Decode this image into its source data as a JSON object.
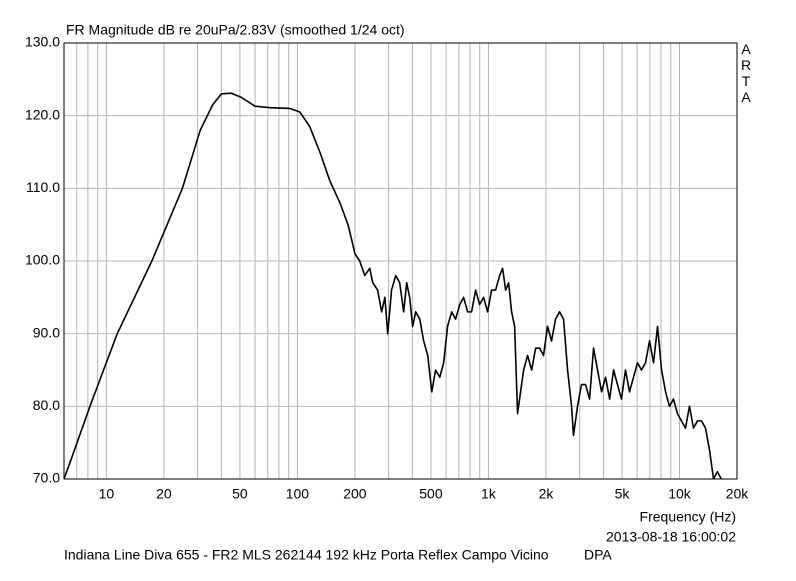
{
  "chart_data": {
    "type": "line",
    "title": "FR Magnitude dB re 20uPa/2.83V (smoothed 1/24 oct)",
    "side_label": "ARTA",
    "xlabel": "Frequency (Hz)",
    "timestamp": "2013-08-18  16:00:02",
    "footer": "Indiana Line Diva 655 - FR2 MLS 262144 192 kHz Porta Reflex Campo Vicino",
    "footer_right": "DPA",
    "xscale": "log",
    "xlim": [
      6,
      20000
    ],
    "ylim": [
      70,
      130
    ],
    "xticks": [
      10,
      20,
      50,
      100,
      200,
      500,
      {
        "value": 1000,
        "label": "1k"
      },
      {
        "value": 2000,
        "label": "2k"
      },
      {
        "value": 5000,
        "label": "5k"
      },
      {
        "value": 10000,
        "label": "10k"
      },
      {
        "value": 20000,
        "label": "20k"
      }
    ],
    "xgrid": [
      7,
      8,
      9,
      30,
      40,
      60,
      70,
      80,
      90,
      300,
      400,
      600,
      700,
      800,
      900,
      3000,
      4000,
      6000,
      7000,
      8000,
      9000
    ],
    "yticks": [
      {
        "value": 70,
        "label": "70.0"
      },
      {
        "value": 80,
        "label": "80.0"
      },
      {
        "value": 90,
        "label": "90.0"
      },
      {
        "value": 100,
        "label": "100.0"
      },
      {
        "value": 110,
        "label": "110.0"
      },
      {
        "value": 120,
        "label": "120.0"
      },
      {
        "value": 130,
        "label": "130.0"
      }
    ],
    "grid": true,
    "color": "#000000",
    "x": [
      6,
      6.6,
      8.2,
      11.4,
      17.3,
      25,
      31,
      36,
      40,
      45,
      51,
      60,
      72,
      91,
      103,
      116,
      131,
      148,
      167,
      184,
      192,
      200,
      212,
      225,
      239,
      248,
      263,
      276,
      287,
      297,
      311,
      327,
      343,
      360,
      373,
      387,
      401,
      416,
      437,
      458,
      481,
      505,
      529,
      556,
      583,
      611,
      642,
      673,
      707,
      741,
      778,
      816,
      857,
      899,
      943,
      990,
      1038,
      1090,
      1144,
      1186,
      1230,
      1275,
      1322,
      1371,
      1420,
      1473,
      1528,
      1603,
      1683,
      1766,
      1854,
      1942,
      2038,
      2139,
      2245,
      2356,
      2472,
      2595,
      2723,
      2787,
      2925,
      3070,
      3222,
      3382,
      3549,
      3725,
      3910,
      4103,
      4307,
      4520,
      4736,
      4970,
      5216,
      5474,
      5745,
      6030,
      6326,
      6640,
      6969,
      7314,
      7676,
      8056,
      8455,
      8858,
      9296,
      9757,
      10240,
      10747,
      11279,
      11837,
      12423,
      13038,
      13683,
      14360,
      15071,
      15780,
      16564
    ],
    "values": [
      70,
      73,
      80,
      90,
      100,
      110,
      118,
      121.5,
      123,
      123.1,
      122.5,
      121.3,
      121.1,
      121,
      120.5,
      118.5,
      115,
      111,
      108,
      105,
      103,
      101,
      100,
      98,
      99,
      97,
      96,
      93,
      95,
      90,
      96,
      98,
      97,
      93,
      97,
      95,
      91,
      93,
      92,
      89,
      87,
      82,
      85,
      84,
      86,
      91,
      93,
      92,
      94,
      95,
      93,
      93,
      96,
      94,
      95,
      93,
      96,
      96,
      98,
      99,
      96,
      97,
      93,
      91,
      79,
      82,
      85,
      87,
      85,
      88,
      88,
      87,
      91,
      89,
      92,
      93,
      92,
      85,
      80,
      76,
      80,
      83,
      83,
      81,
      88,
      85,
      82,
      84,
      81,
      85,
      83,
      81,
      85,
      82,
      84,
      86,
      85,
      86,
      89,
      86,
      91,
      85,
      82,
      80,
      81,
      79,
      78,
      77,
      80,
      77,
      78,
      78,
      77,
      74,
      70,
      71,
      70
    ]
  }
}
